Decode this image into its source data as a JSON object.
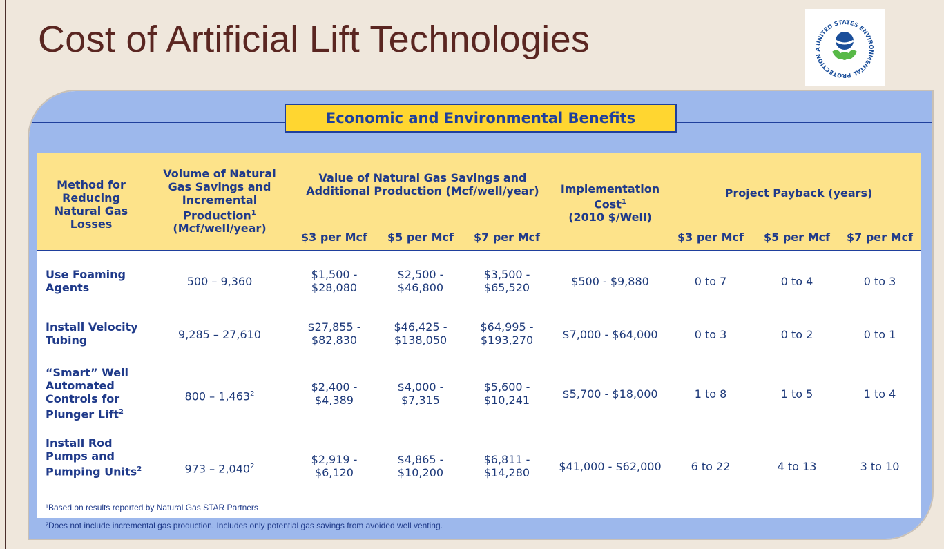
{
  "slide": {
    "title": "Cost of Artificial Lift Technologies",
    "logo_text": "UNITED STATES ENVIRONMENTAL PROTECTION AGENCY"
  },
  "table": {
    "banner": "Economic and Environmental Benefits",
    "headers": {
      "method": "Method for Reducing Natural Gas Losses",
      "volume": "Volume of Natural Gas Savings and Incremental Production",
      "volume_sup": "1",
      "volume_units": "(Mcf/well/year)",
      "value": "Value of Natural Gas Savings and Additional Production (Mcf/well/year)",
      "implementation": "Implementation Cost",
      "implementation_sup": "1",
      "implementation_units": "(2010 $/Well)",
      "payback": "Project Payback (years)",
      "price_3": "$3 per Mcf",
      "price_5": "$5 per Mcf",
      "price_7": "$7 per Mcf",
      "pb_3": "$3 per Mcf",
      "pb_5": "$5 per Mcf",
      "pb_7": "$7 per Mcf"
    },
    "rows": [
      {
        "method": "Use Foaming Agents",
        "volume": "500 – 9,360",
        "v3a": "$1,500 -",
        "v3b": "$28,080",
        "v5a": "$2,500 -",
        "v5b": "$46,800",
        "v7a": "$3,500 -",
        "v7b": "$65,520",
        "cost": "$500 - $9,880",
        "p3": "0 to 7",
        "p5": "0 to 4",
        "p7": "0 to 3"
      },
      {
        "method": "Install Velocity Tubing",
        "volume": "9,285 – 27,610",
        "v3a": "$27,855 -",
        "v3b": "$82,830",
        "v5a": "$46,425 -",
        "v5b": "$138,050",
        "v7a": "$64,995 -",
        "v7b": "$193,270",
        "cost": "$7,000 - $64,000",
        "p3": "0 to 3",
        "p5": "0 to 2",
        "p7": "0 to 1"
      },
      {
        "method": "“Smart” Well Automated Controls for Plunger Lift",
        "volume": "800 – 1,463",
        "v3a": "$2,400 -",
        "v3b": "$4,389",
        "v5a": "$4,000 -",
        "v5b": "$7,315",
        "v7a": "$5,600 -",
        "v7b": "$10,241",
        "cost": "$5,700 - $18,000",
        "p3": "1 to 8",
        "p5": "1 to 5",
        "p7": "1 to 4"
      },
      {
        "method": "Install Rod Pumps and Pumping Units",
        "volume": "973 – 2,040",
        "v3a": "$2,919 -",
        "v3b": "$6,120",
        "v5a": "$4,865 -",
        "v5b": "$10,200",
        "v7a": "$6,811 -",
        "v7b": "$14,280",
        "cost": "$41,000 - $62,000",
        "p3": "6 to 22",
        "p5": "4 to 13",
        "p7": "3 to 10"
      }
    ],
    "sup2": "2",
    "footnote1": "¹Based on results reported by Natural Gas STAR Partners",
    "footnote2": "²Does not include incremental gas production. Includes only potential gas savings from avoided well venting."
  }
}
